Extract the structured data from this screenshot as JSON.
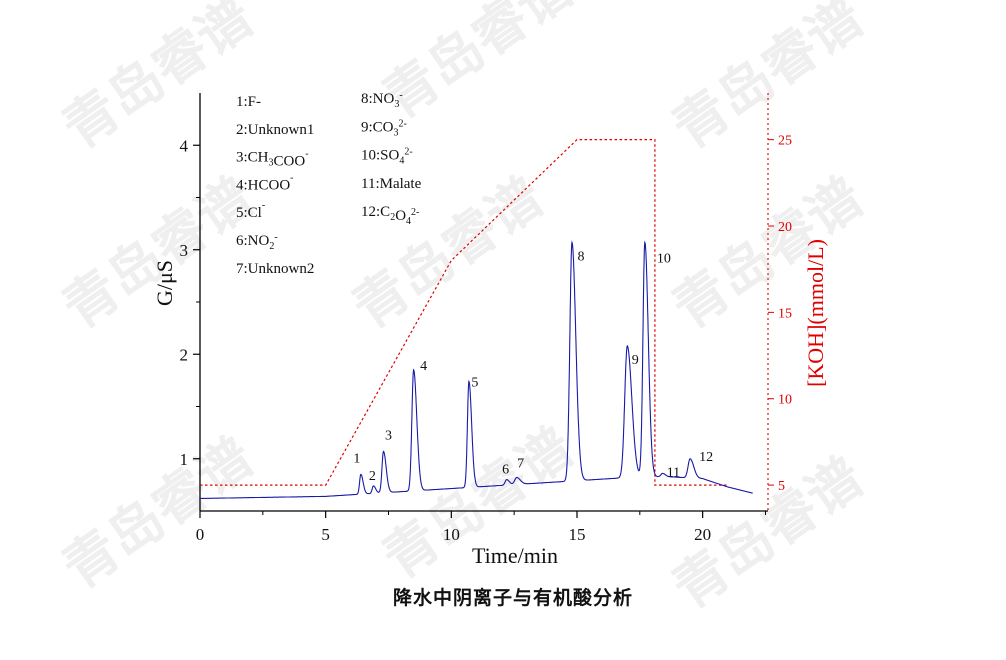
{
  "chart_data": {
    "type": "line",
    "caption": "降水中阴离子与有机酸分析",
    "watermark": "青岛睿谱",
    "xlabel": "Time/min",
    "ylabel": "G/μS",
    "y2label": "[KOH](mmol/L)",
    "xlim": [
      0,
      22.6
    ],
    "ylim": [
      0.5,
      4.5
    ],
    "y2lim": [
      3.5,
      27.7
    ],
    "xticks": [
      0,
      5,
      10,
      15,
      20
    ],
    "yticks": [
      1,
      2,
      3,
      4
    ],
    "y2ticks": [
      5,
      10,
      15,
      20,
      25
    ],
    "colors": {
      "signal": "#1a1aa8",
      "gradient": "#e00000",
      "axis": "#000000"
    },
    "series": [
      {
        "role": "signal",
        "baseline": [
          [
            0,
            0.62
          ],
          [
            5,
            0.64
          ],
          [
            7,
            0.67
          ],
          [
            9,
            0.7
          ],
          [
            11,
            0.73
          ],
          [
            13,
            0.76
          ],
          [
            15,
            0.79
          ],
          [
            17,
            0.82
          ],
          [
            18.5,
            0.83
          ],
          [
            20,
            0.81
          ],
          [
            21,
            0.73
          ],
          [
            22,
            0.67
          ]
        ],
        "peaks": [
          {
            "label": "1",
            "t": 6.4,
            "height": 0.85
          },
          {
            "label": "2",
            "t": 6.9,
            "height": 0.74
          },
          {
            "label": "3",
            "t": 7.3,
            "height": 1.07
          },
          {
            "label": "4",
            "t": 8.5,
            "height": 1.85
          },
          {
            "label": "5",
            "t": 10.7,
            "height": 1.74
          },
          {
            "label": "6",
            "t": 12.2,
            "height": 0.8
          },
          {
            "label": "7",
            "t": 12.6,
            "height": 0.82
          },
          {
            "label": "8",
            "t": 14.8,
            "height": 3.07
          },
          {
            "label": "9",
            "t": 17.0,
            "height": 2.08
          },
          {
            "label": "10",
            "t": 17.7,
            "height": 3.07
          },
          {
            "label": "11",
            "t": 18.4,
            "height": 0.86
          },
          {
            "label": "12",
            "t": 19.5,
            "height": 1.0
          }
        ]
      },
      {
        "role": "gradient",
        "points": [
          [
            0,
            5
          ],
          [
            5,
            5
          ],
          [
            10,
            18
          ],
          [
            15,
            25
          ],
          [
            18.1,
            25
          ],
          [
            18.1,
            5
          ],
          [
            21,
            5
          ]
        ]
      }
    ],
    "legend": [
      {
        "col": 0,
        "parts": [
          [
            "1:F-",
            ""
          ]
        ]
      },
      {
        "col": 0,
        "parts": [
          [
            "2:Unknown1",
            ""
          ]
        ]
      },
      {
        "col": 0,
        "parts": [
          [
            "3:CH",
            ""
          ],
          [
            "3",
            "sub"
          ],
          [
            "COO",
            ""
          ],
          [
            "-",
            "sup"
          ]
        ]
      },
      {
        "col": 0,
        "parts": [
          [
            "4:HCOO",
            ""
          ],
          [
            "-",
            "sup"
          ]
        ]
      },
      {
        "col": 0,
        "parts": [
          [
            "5:Cl",
            ""
          ],
          [
            "-",
            "sup"
          ]
        ]
      },
      {
        "col": 0,
        "parts": [
          [
            "6:NO",
            ""
          ],
          [
            "2",
            "sub"
          ],
          [
            "-",
            "sup"
          ]
        ]
      },
      {
        "col": 0,
        "parts": [
          [
            "7:Unknown2",
            ""
          ]
        ]
      },
      {
        "col": 1,
        "parts": [
          [
            "8:NO",
            ""
          ],
          [
            "3",
            "sub"
          ],
          [
            "-",
            "sup"
          ]
        ]
      },
      {
        "col": 1,
        "parts": [
          [
            "9:CO",
            ""
          ],
          [
            "3",
            "sub"
          ],
          [
            "2-",
            "sup"
          ]
        ]
      },
      {
        "col": 1,
        "parts": [
          [
            "10:SO",
            ""
          ],
          [
            "4",
            "sub"
          ],
          [
            "2-",
            "sup"
          ]
        ]
      },
      {
        "col": 1,
        "parts": [
          [
            "11:Malate",
            ""
          ]
        ]
      },
      {
        "col": 1,
        "parts": [
          [
            "12:C",
            ""
          ],
          [
            "2",
            "sub"
          ],
          [
            "O",
            ""
          ],
          [
            "4",
            "sub"
          ],
          [
            "2-",
            "sup"
          ]
        ]
      }
    ]
  }
}
